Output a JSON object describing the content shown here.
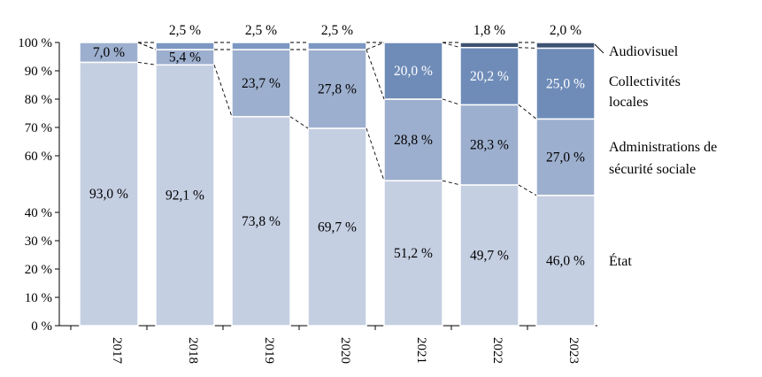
{
  "chart_data": {
    "type": "bar",
    "stacked": true,
    "categories": [
      "2017",
      "2018",
      "2019",
      "2020",
      "2021",
      "2022",
      "2023"
    ],
    "ylim": [
      0,
      100
    ],
    "yticks": [
      0,
      10,
      20,
      30,
      40,
      60,
      70,
      80,
      90,
      100
    ],
    "ytick_labels": [
      "0 %",
      "10 %",
      "20 %",
      "30 %",
      "40 %",
      "60 %",
      "70 %",
      "80 %",
      "90 %",
      "100 %"
    ],
    "grid": false,
    "legend_placement": "right",
    "series": [
      {
        "name": "État",
        "color": "#c5cfe2",
        "label_color": "#000000",
        "values": [
          93.0,
          92.1,
          73.8,
          69.7,
          51.2,
          49.7,
          46.0
        ],
        "labels": [
          "93,0 %",
          "92,1 %",
          "73,8 %",
          "69,7 %",
          "51,2 %",
          "49,7 %",
          "46,0 %"
        ]
      },
      {
        "name": "Administrations de sécurité sociale",
        "color": "#9dafce",
        "label_color": "#000000",
        "values": [
          7.0,
          5.4,
          23.7,
          27.8,
          28.8,
          28.3,
          27.0
        ],
        "labels": [
          "7,0 %",
          "5,4 %",
          "23,7 %",
          "27,8 %",
          "28,8 %",
          "28,3 %",
          "27,0 %"
        ]
      },
      {
        "name": "Collectivités locales",
        "color": "#6f8cb8",
        "label_color": "#ffffff",
        "values": [
          0,
          0,
          0,
          0,
          20.0,
          20.2,
          25.0
        ],
        "labels": [
          "",
          "",
          "",
          "",
          "20,0 %",
          "20,2 %",
          "25,0 %"
        ]
      },
      {
        "name": "Audiovisuel",
        "color": "#7b97c2",
        "color_2022_2023": "#3d5373",
        "label_color": "#000000",
        "values": [
          0,
          2.5,
          2.5,
          2.5,
          0,
          1.8,
          2.0
        ],
        "labels": [
          "",
          "2,5 %",
          "2,5 %",
          "2,5 %",
          "",
          "1,8 %",
          "2,0 %"
        ]
      }
    ],
    "legend": [
      {
        "lines": [
          "Audiovisuel"
        ],
        "series": 3
      },
      {
        "lines": [
          "Collectivités",
          "locales"
        ],
        "series": 2
      },
      {
        "lines": [
          "Administrations de",
          "sécurité sociale"
        ],
        "series": 1
      },
      {
        "lines": [
          "État"
        ],
        "series": 0
      }
    ]
  }
}
